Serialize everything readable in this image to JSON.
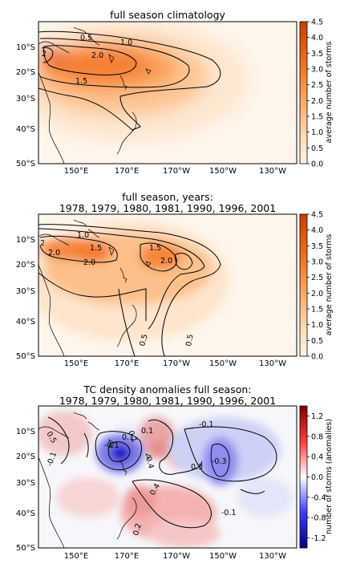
{
  "chart_data": [
    {
      "type": "heatmap",
      "title": "full season climatology",
      "x_tick_labels": [
        "150°E",
        "170°E",
        "170°W",
        "150°W",
        "130°W"
      ],
      "y_tick_labels": [
        "10°S",
        "20°S",
        "30°S",
        "40°S",
        "50°S"
      ],
      "colorbar": {
        "label": "average number of storms",
        "range": [
          0.0,
          4.5
        ],
        "ticks": [
          "0.0",
          "0.5",
          "1.0",
          "1.5",
          "2.0",
          "2.5",
          "3.0",
          "3.5",
          "4.0",
          "4.5"
        ],
        "colormap": "oranges"
      },
      "contour_labels": [
        "0.5",
        "1.0",
        "2.0",
        "1.5",
        "2"
      ],
      "peak_value": 3.5
    },
    {
      "type": "heatmap",
      "title": "full season, years:",
      "subtitle": "1978, 1979, 1980, 1981, 1990, 1996, 2001",
      "x_tick_labels": [
        "150°E",
        "170°E",
        "170°W",
        "150°W",
        "130°W"
      ],
      "y_tick_labels": [
        "10°S",
        "20°S",
        "30°S",
        "40°S",
        "50°S"
      ],
      "colorbar": {
        "label": "average number of storms",
        "range": [
          0.0,
          4.5
        ],
        "ticks": [
          "0.0",
          "0.5",
          "1.0",
          "1.5",
          "2.0",
          "2.5",
          "3.0",
          "3.5",
          "4.0",
          "4.5"
        ],
        "colormap": "oranges"
      },
      "contour_labels": [
        "1.0",
        "2.0",
        "2.0",
        "1.5",
        "2.0",
        "1.5",
        "0.5",
        "0.5",
        "2"
      ],
      "peak_value": 2.8
    },
    {
      "type": "heatmap",
      "title": "TC density anomalies full season:",
      "subtitle": "1978, 1979, 1980, 1981, 1990, 1996, 2001",
      "x_tick_labels": [
        "150°E",
        "170°E",
        "170°W",
        "150°W",
        "130°W"
      ],
      "y_tick_labels": [
        "10°S",
        "20°S",
        "30°S",
        "40°S",
        "50°S"
      ],
      "colorbar": {
        "label": "number of storms (anomalies)",
        "range": [
          -1.4,
          1.4
        ],
        "ticks": [
          "1.2",
          "0.8",
          "0.4",
          "0.0",
          "-0.4",
          "-0.8",
          "-1.2"
        ],
        "colormap": "bwr"
      },
      "contour_labels": [
        "-0.1",
        "0.1",
        "0.1",
        "-0.1",
        "0.5",
        "0.4",
        "0.3",
        "-0.3",
        "0.4",
        "0.2",
        "-0.1",
        "-0.1",
        "0.1"
      ]
    }
  ]
}
